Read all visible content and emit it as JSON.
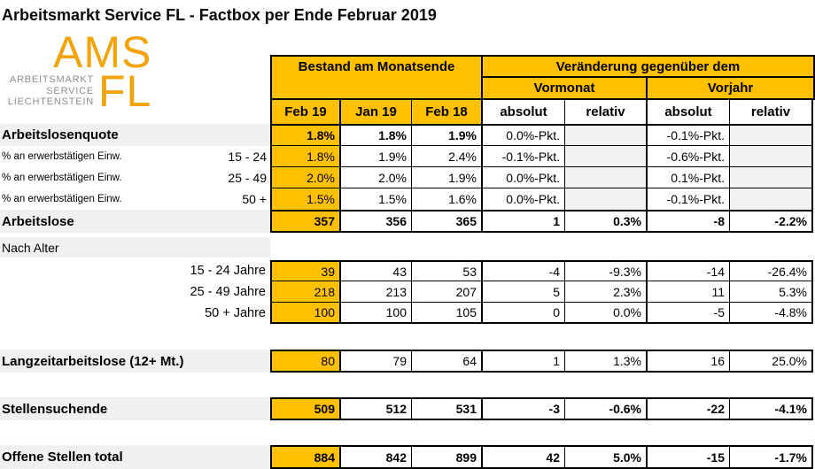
{
  "title": "Arbeitsmarkt Service FL - Factbox per Ende Februar 2019",
  "logo": {
    "ams": "AMS",
    "fl": "FL",
    "line1": "ARBEITSMARKT",
    "line2": "SERVICE",
    "line3": "LIECHTENSTEIN"
  },
  "colors": {
    "gold": "#FFC000",
    "label_gray": "#F0F0F0",
    "cell_gray": "#F2F2F2",
    "logo_orange": "#F2A30B",
    "logo_gray": "#8E8E8E"
  },
  "header": {
    "bestand": "Bestand am Monatsende",
    "veraenderung": "Veränderung gegenüber dem",
    "vormonat": "Vormonat",
    "vorjahr": "Vorjahr",
    "cols": [
      "Feb 19",
      "Jan 19",
      "Feb 18",
      "absolut",
      "relativ",
      "absolut",
      "relativ"
    ]
  },
  "table": {
    "rows": [
      {
        "label": "Arbeitslosenquote",
        "sub": "",
        "v": [
          "1.8%",
          "1.8%",
          "1.9%",
          "0.0%-Pkt.",
          "",
          "-0.1%-Pkt.",
          ""
        ]
      },
      {
        "label": "% an erwerbstätigen Einw.",
        "sub": "15 - 24",
        "v": [
          "1.8%",
          "1.9%",
          "2.4%",
          "-0.1%-Pkt.",
          "",
          "-0.6%-Pkt.",
          ""
        ]
      },
      {
        "label": "% an erwerbstätigen Einw.",
        "sub": "25 - 49",
        "v": [
          "2.0%",
          "2.0%",
          "1.9%",
          "0.0%-Pkt.",
          "",
          "0.1%-Pkt.",
          ""
        ]
      },
      {
        "label": "% an erwerbstätigen Einw.",
        "sub": "50 +",
        "v": [
          "1.5%",
          "1.5%",
          "1.6%",
          "0.0%-Pkt.",
          "",
          "-0.1%-Pkt.",
          ""
        ]
      },
      {
        "label": "Arbeitslose",
        "sub": "",
        "v": [
          "357",
          "356",
          "365",
          "1",
          "0.3%",
          "-8",
          "-2.2%"
        ]
      },
      {
        "label": "Nach Alter",
        "sub": "",
        "v": [
          "",
          "",
          "",
          "",
          "",
          "",
          ""
        ]
      },
      {
        "label": "15 - 24 Jahre",
        "sub": "",
        "v": [
          "39",
          "43",
          "53",
          "-4",
          "-9.3%",
          "-14",
          "-26.4%"
        ]
      },
      {
        "label": "25 - 49 Jahre",
        "sub": "",
        "v": [
          "218",
          "213",
          "207",
          "5",
          "2.3%",
          "11",
          "5.3%"
        ]
      },
      {
        "label": "50 + Jahre",
        "sub": "",
        "v": [
          "100",
          "100",
          "105",
          "0",
          "0.0%",
          "-5",
          "-4.8%"
        ]
      },
      {
        "label": "Langzeitarbeitslose (12+ Mt.)",
        "sub": "",
        "v": [
          "80",
          "79",
          "64",
          "1",
          "1.3%",
          "16",
          "25.0%"
        ]
      },
      {
        "label": "Stellensuchende",
        "sub": "",
        "v": [
          "509",
          "512",
          "531",
          "-3",
          "-0.6%",
          "-22",
          "-4.1%"
        ]
      },
      {
        "label": "Offene Stellen total",
        "sub": "",
        "v": [
          "884",
          "842",
          "899",
          "42",
          "5.0%",
          "-15",
          "-1.7%"
        ]
      }
    ]
  }
}
